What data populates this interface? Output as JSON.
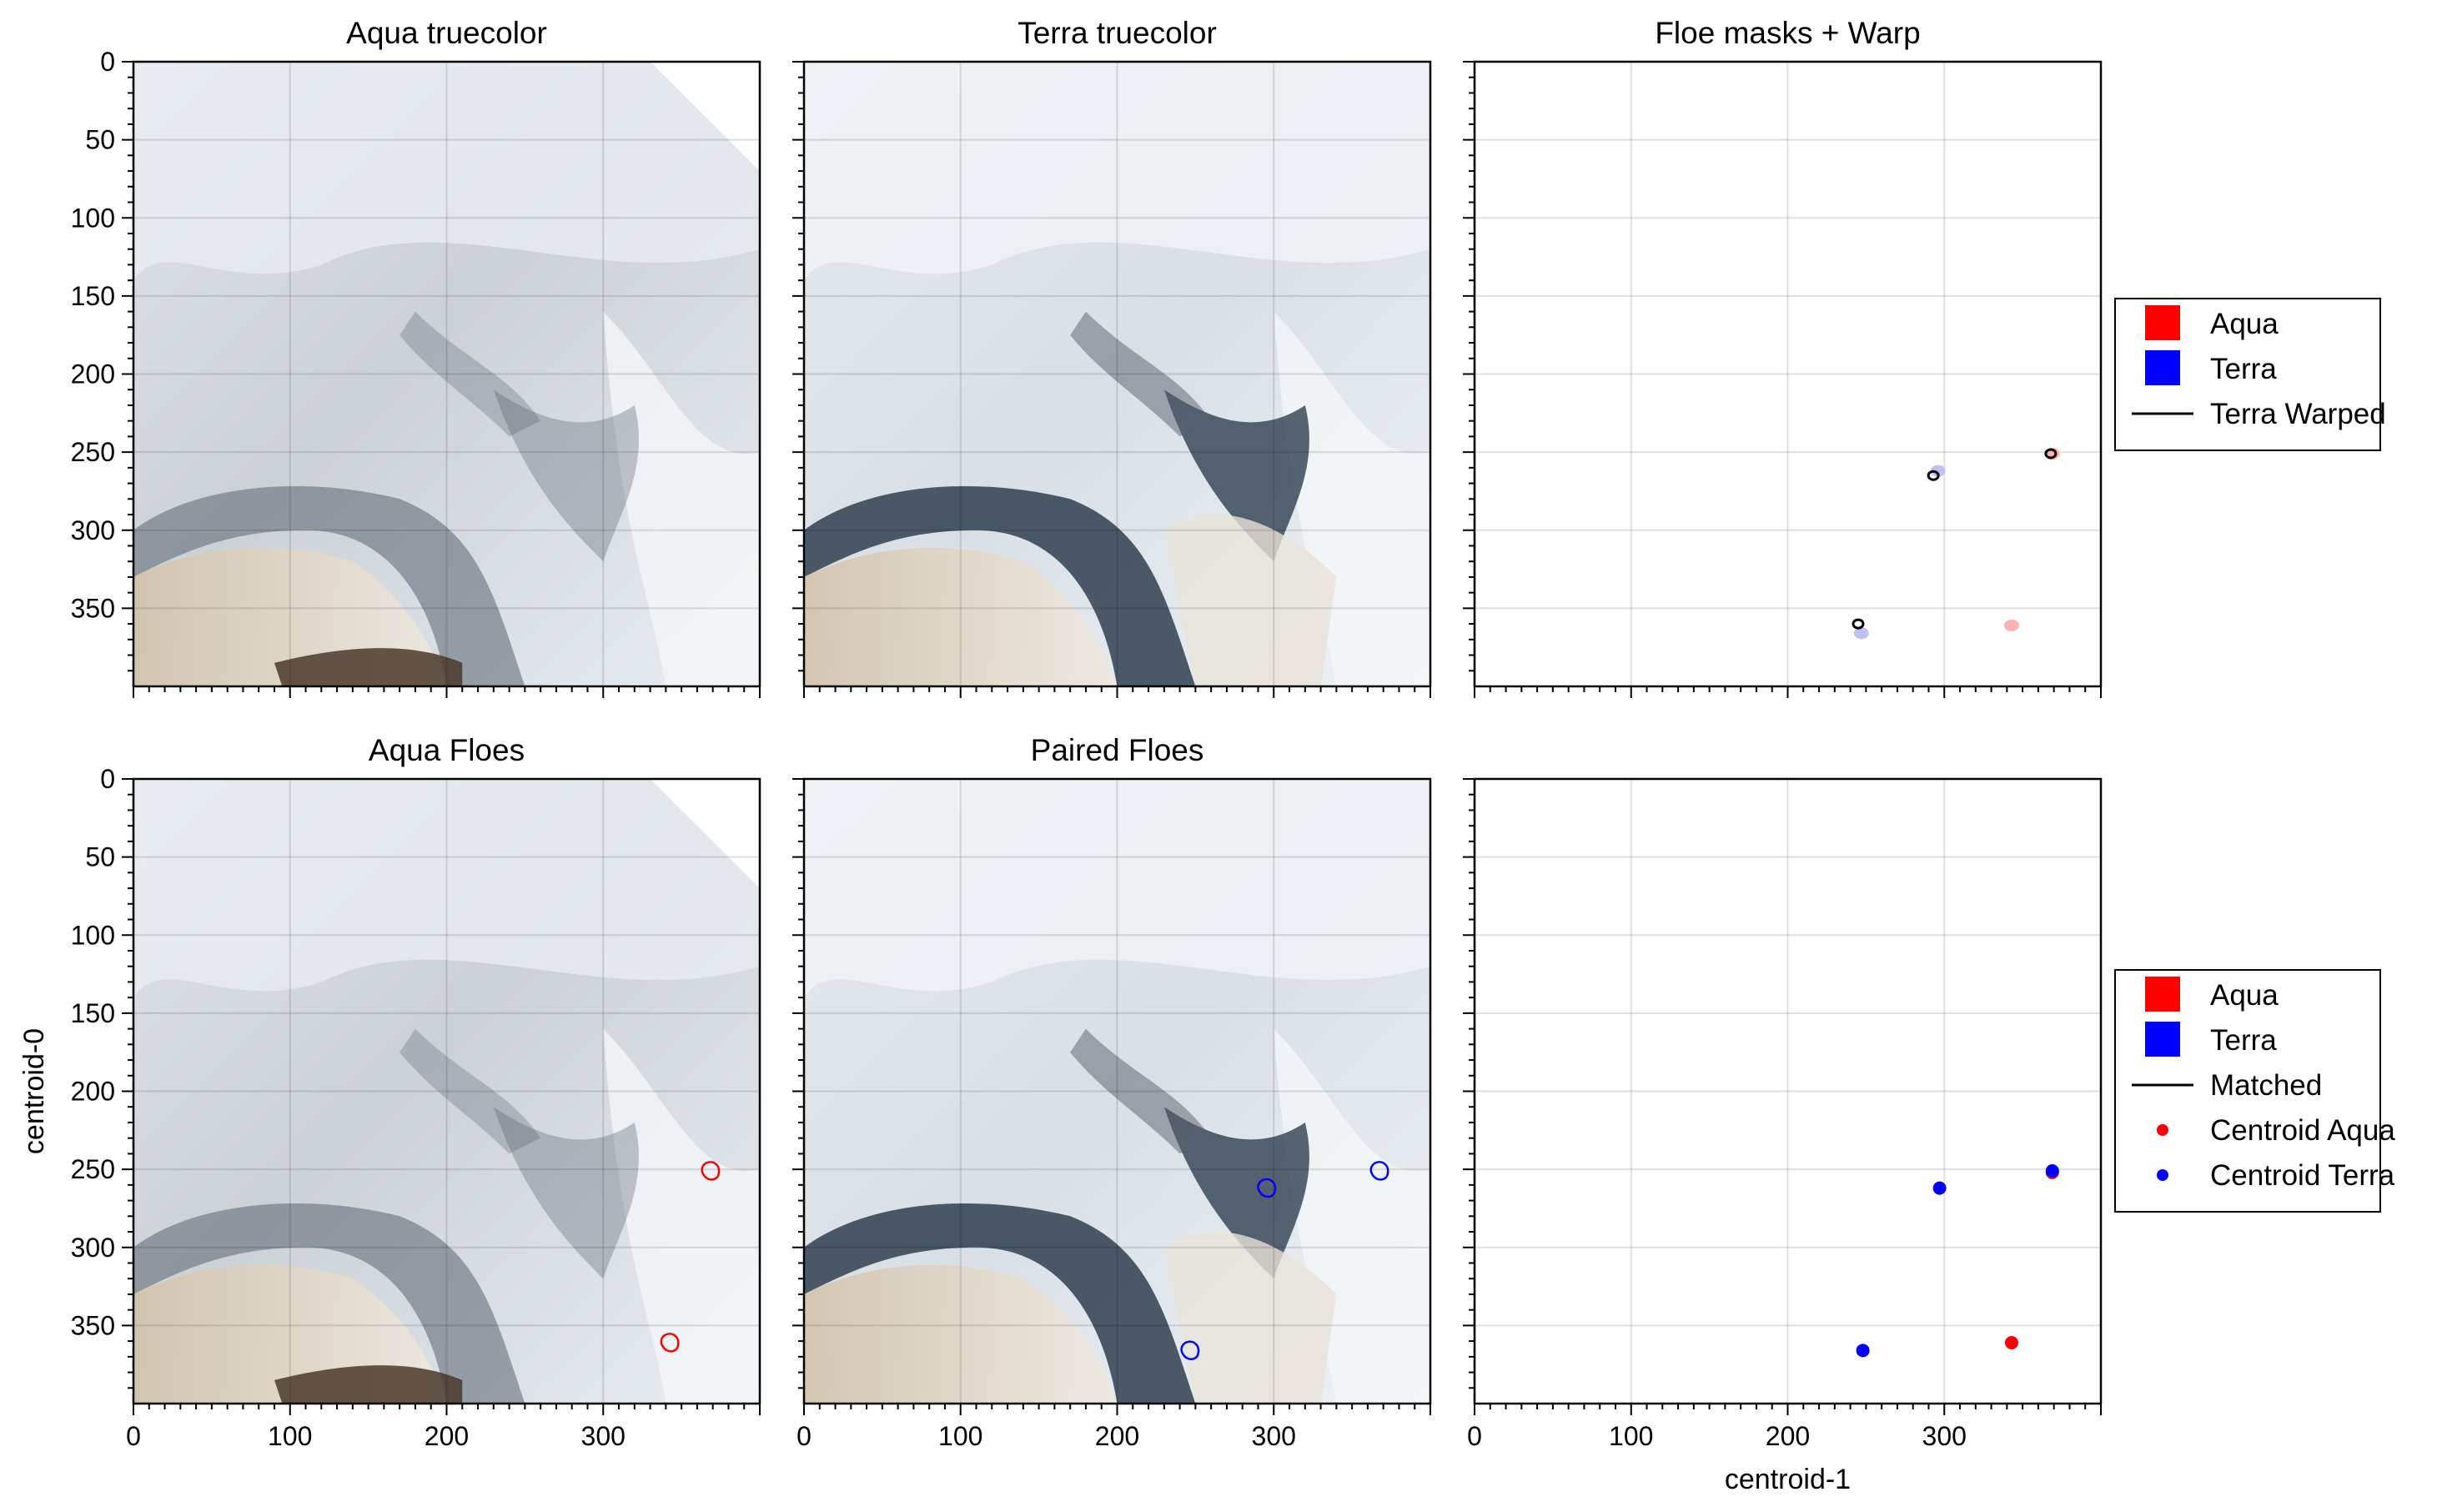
{
  "chart_data": [
    {
      "type": "image",
      "title": "Aqua truecolor",
      "xlim": [
        0,
        400
      ],
      "ylim": [
        400,
        0
      ],
      "xticks": [],
      "yticks": [
        "0",
        "50",
        "100",
        "150",
        "200",
        "250",
        "300",
        "350"
      ],
      "image_variant": "aqua"
    },
    {
      "type": "image",
      "title": "Terra truecolor",
      "xlim": [
        0,
        400
      ],
      "ylim": [
        400,
        0
      ],
      "xticks": [],
      "yticks": [],
      "image_variant": "terra"
    },
    {
      "type": "scatter",
      "title": "Floe masks + Warp",
      "xlim": [
        0,
        400
      ],
      "ylim": [
        400,
        0
      ],
      "xticks": [],
      "yticks": [],
      "grid": true,
      "legend_position": "right",
      "legend": [
        {
          "label": "Aqua",
          "kind": "patch",
          "color": "#ff0000"
        },
        {
          "label": "Terra",
          "kind": "patch",
          "color": "#0000ff"
        },
        {
          "label": "Terra Warped",
          "kind": "line",
          "color": "#000000"
        }
      ],
      "series": [
        {
          "name": "Aqua",
          "color": "#ffb0b0",
          "kind": "blob",
          "points": [
            [
              369,
              251
            ],
            [
              343,
              361
            ]
          ]
        },
        {
          "name": "Terra",
          "color": "#c0c0f2",
          "kind": "blob",
          "points": [
            [
              296,
              262
            ],
            [
              247,
              366
            ]
          ]
        },
        {
          "name": "Terra Warped",
          "color": "#000000",
          "kind": "outline",
          "points": [
            [
              368,
              251
            ],
            [
              293,
              265
            ],
            [
              245,
              360
            ]
          ]
        }
      ]
    },
    {
      "type": "image",
      "title": "Aqua Floes",
      "xlim": [
        0,
        400
      ],
      "ylim": [
        400,
        0
      ],
      "xticks": [
        "0",
        "100",
        "200",
        "300"
      ],
      "yticks": [
        "0",
        "50",
        "100",
        "150",
        "200",
        "250",
        "300",
        "350"
      ],
      "ylabel": "centroid-0",
      "image_variant": "aqua",
      "floe_outlines": {
        "color": "#ff0000",
        "points": [
          [
            369,
            251
          ],
          [
            343,
            361
          ]
        ]
      }
    },
    {
      "type": "image",
      "title": "Paired Floes",
      "xlim": [
        0,
        400
      ],
      "ylim": [
        400,
        0
      ],
      "xticks": [
        "0",
        "100",
        "200",
        "300"
      ],
      "yticks": [],
      "image_variant": "terra",
      "floe_outlines": {
        "color": "#0000ff",
        "points": [
          [
            368,
            251
          ],
          [
            296,
            262
          ],
          [
            247,
            366
          ]
        ]
      }
    },
    {
      "type": "scatter",
      "title": "",
      "xlim": [
        0,
        400
      ],
      "ylim": [
        400,
        0
      ],
      "xticks": [
        "0",
        "100",
        "200",
        "300"
      ],
      "yticks": [],
      "xlabel": "centroid-1",
      "grid": true,
      "legend_position": "right",
      "legend": [
        {
          "label": "Aqua",
          "kind": "patch",
          "color": "#ff0000"
        },
        {
          "label": "Terra",
          "kind": "patch",
          "color": "#0000ff"
        },
        {
          "label": "Matched",
          "kind": "line",
          "color": "#000000"
        },
        {
          "label": "Centroid Aqua",
          "kind": "dot",
          "color": "#ff0000"
        },
        {
          "label": "Centroid Terra",
          "kind": "dot",
          "color": "#0000ff"
        }
      ],
      "series": [
        {
          "name": "Centroid Aqua",
          "color": "#ff0000",
          "kind": "dot",
          "points": [
            [
              343,
              361
            ],
            [
              369,
              252
            ]
          ]
        },
        {
          "name": "Centroid Terra",
          "color": "#0000ff",
          "kind": "dot",
          "points": [
            [
              369,
              251
            ],
            [
              297,
              262
            ],
            [
              248,
              366
            ]
          ]
        }
      ]
    }
  ]
}
